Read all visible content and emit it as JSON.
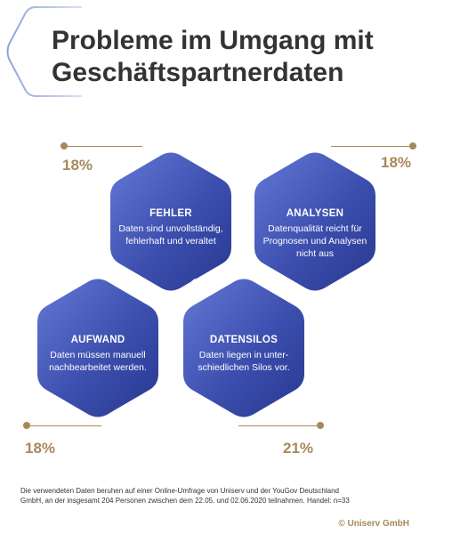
{
  "title": {
    "line1": "Probleme im Umgang mit",
    "line2": "Geschäftspartnerdaten"
  },
  "cards": [
    {
      "id": "fehler",
      "heading": "FEHLER",
      "desc_line1": "Daten sind unvollständig,",
      "desc_line2": "fehlerhaft und veraltet",
      "desc_line3": "",
      "percent": "18%",
      "icon": "error-circle-x-icon"
    },
    {
      "id": "analysen",
      "heading": "ANALYSEN",
      "desc_line1": "Datenqualität reicht für",
      "desc_line2": "Prognosen und Analysen",
      "desc_line3": "nicht aus",
      "percent": "18%",
      "icon": "trend-chart-icon"
    },
    {
      "id": "aufwand",
      "heading": "AUFWAND",
      "desc_line1": "Daten müssen manuell",
      "desc_line2": "nachbearbeitet werden.",
      "desc_line3": "",
      "percent": "18%",
      "icon": "money-bag-coins-icon"
    },
    {
      "id": "datensilos",
      "heading": "DATENSILOS",
      "desc_line1": "Daten liegen in unter-",
      "desc_line2": "schiedlichen Silos vor.",
      "desc_line3": "",
      "percent": "21%",
      "icon": "house-question-icon"
    }
  ],
  "footnote": {
    "line1": "Die verwendeten Daten beruhen auf einer Online-Umfrage von Uniserv und der YouGov Deutschland",
    "line2": "GmbH, an der insgesamt 204 Personen zwischen dem 22.05. und 02.06.2020 teilnahmen. Handel: n=33"
  },
  "copyright": "© Uniserv GmbH",
  "colors": {
    "accent_gold": "#a8895b",
    "hex_dark": "#2f3f9a",
    "hex_light": "#5a6fd0",
    "title_text": "#333333"
  }
}
